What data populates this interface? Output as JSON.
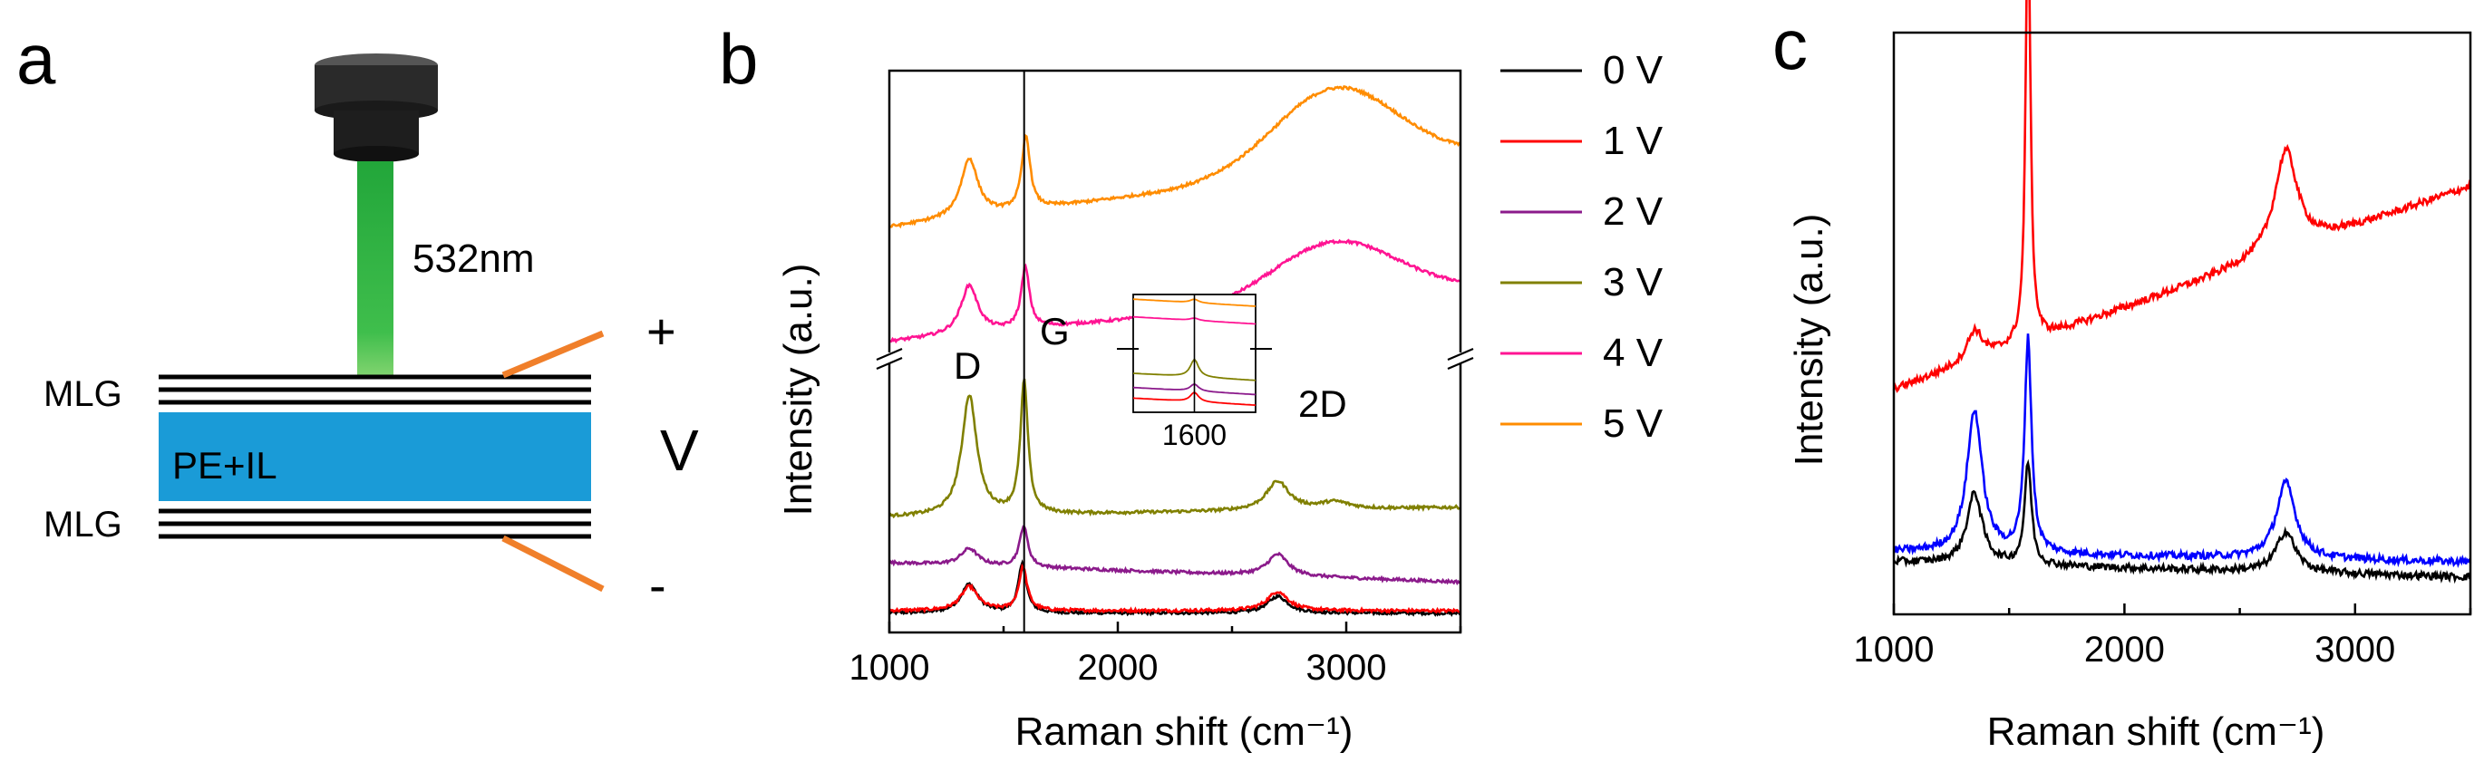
{
  "panels": {
    "a": {
      "label": "a",
      "laser_label": "532nm",
      "layer_top_label": "MLG",
      "layer_bottom_label": "MLG",
      "electrolyte_label": "PE+IL",
      "plus_label": "+",
      "minus_label": "-",
      "voltage_label": "V",
      "colors": {
        "laser": "#27a83a",
        "electrolyte": "#1a9bd7",
        "lead": "#f07f2a",
        "objective": "#2a2a2a"
      }
    },
    "b": {
      "label": "b"
    },
    "c": {
      "label": "c"
    }
  },
  "chart_data": [
    {
      "panel": "b",
      "type": "line",
      "xlabel": "Raman shift (cm⁻¹)",
      "ylabel": "Intensity (a.u.)",
      "xlim": [
        1000,
        3500
      ],
      "x_ticks": [
        "1000",
        "2000",
        "3000"
      ],
      "y_axis_break": true,
      "reference_line_x": 1590,
      "legend": [
        {
          "name": "0 V",
          "color": "#000000"
        },
        {
          "name": "1 V",
          "color": "#ff0000"
        },
        {
          "name": "2 V",
          "color": "#8b1a8b"
        },
        {
          "name": "3 V",
          "color": "#808000"
        },
        {
          "name": "4 V",
          "color": "#ff1493"
        },
        {
          "name": "5 V",
          "color": "#ff8c00"
        }
      ],
      "peak_labels": [
        "D",
        "G",
        "2D"
      ],
      "series": [
        {
          "name": "0 V",
          "color": "#000000",
          "baseline": 0.05,
          "bgSlope": 0.0,
          "peaks": [
            [
              1350,
              0.12,
              45
            ],
            [
              1582,
              0.2,
              22
            ],
            [
              2700,
              0.07,
              55
            ]
          ],
          "hump": 0
        },
        {
          "name": "1 V",
          "color": "#ff0000",
          "baseline": 0.06,
          "bgSlope": 0.0,
          "peaks": [
            [
              1350,
              0.1,
              45
            ],
            [
              1585,
              0.18,
              22
            ],
            [
              2700,
              0.08,
              55
            ]
          ],
          "hump": 0
        },
        {
          "name": "2 V",
          "color": "#8b1a8b",
          "baseline": 0.26,
          "bgSlope": -0.08,
          "peaks": [
            [
              1350,
              0.07,
              45
            ],
            [
              1588,
              0.17,
              22
            ],
            [
              2700,
              0.09,
              55
            ]
          ],
          "hump": 0
        },
        {
          "name": "3 V",
          "color": "#808000",
          "baseline": 0.45,
          "bgSlope": 0.04,
          "peaks": [
            [
              1350,
              0.5,
              40
            ],
            [
              1590,
              0.55,
              20
            ],
            [
              2700,
              0.12,
              60
            ],
            [
              2950,
              0.03,
              80
            ]
          ],
          "hump": 0
        },
        {
          "name": "4 V",
          "color": "#ff1493",
          "baseline": 1.28,
          "bgSlope": 0.22,
          "peaks": [
            [
              1350,
              0.2,
              45
            ],
            [
              1595,
              0.25,
              22
            ]
          ],
          "hump": 0.24
        },
        {
          "name": "5 V",
          "color": "#ff8c00",
          "baseline": 1.75,
          "bgSlope": 0.3,
          "peaks": [
            [
              1350,
              0.24,
              45
            ],
            [
              1598,
              0.3,
              22
            ]
          ],
          "hump": 0.34
        }
      ],
      "inset": {
        "tick_label": "1600",
        "xlim": [
          1500,
          1700
        ],
        "reference_line_x": 1600,
        "traces": [
          {
            "color": "#ff8c00",
            "level": 0.93,
            "peak": 0.03
          },
          {
            "color": "#ff1493",
            "level": 0.78,
            "peak": 0.02
          },
          {
            "color": "#808000",
            "level": 0.3,
            "peak": 0.15
          },
          {
            "color": "#8b1a8b",
            "level": 0.18,
            "peak": 0.06
          },
          {
            "color": "#ff0000",
            "level": 0.09,
            "peak": 0.08
          }
        ]
      }
    },
    {
      "panel": "c",
      "type": "line",
      "xlabel": "Raman shift (cm⁻¹)",
      "ylabel": "Intensity (a.u.)",
      "xlim": [
        1000,
        3500
      ],
      "x_ticks": [
        "1000",
        "2000",
        "3000"
      ],
      "series": [
        {
          "name": "red",
          "color": "#ff0000",
          "baseline": 0.42,
          "bgSlope": 0.4,
          "peaks": [
            [
              1350,
              0.06,
              40
            ],
            [
              1582,
              0.88,
              12
            ],
            [
              2700,
              0.2,
              60
            ]
          ],
          "hump": 0
        },
        {
          "name": "blue",
          "color": "#0000ff",
          "baseline": 0.1,
          "bgSlope": -0.02,
          "peaks": [
            [
              1350,
              0.28,
              40
            ],
            [
              1582,
              0.42,
              18
            ],
            [
              2700,
              0.15,
              50
            ]
          ],
          "hump": 0
        },
        {
          "name": "black",
          "color": "#000000",
          "baseline": 0.08,
          "bgSlope": -0.03,
          "peaks": [
            [
              1350,
              0.14,
              40
            ],
            [
              1582,
              0.2,
              18
            ],
            [
              2700,
              0.08,
              50
            ]
          ],
          "hump": 0
        }
      ]
    }
  ]
}
